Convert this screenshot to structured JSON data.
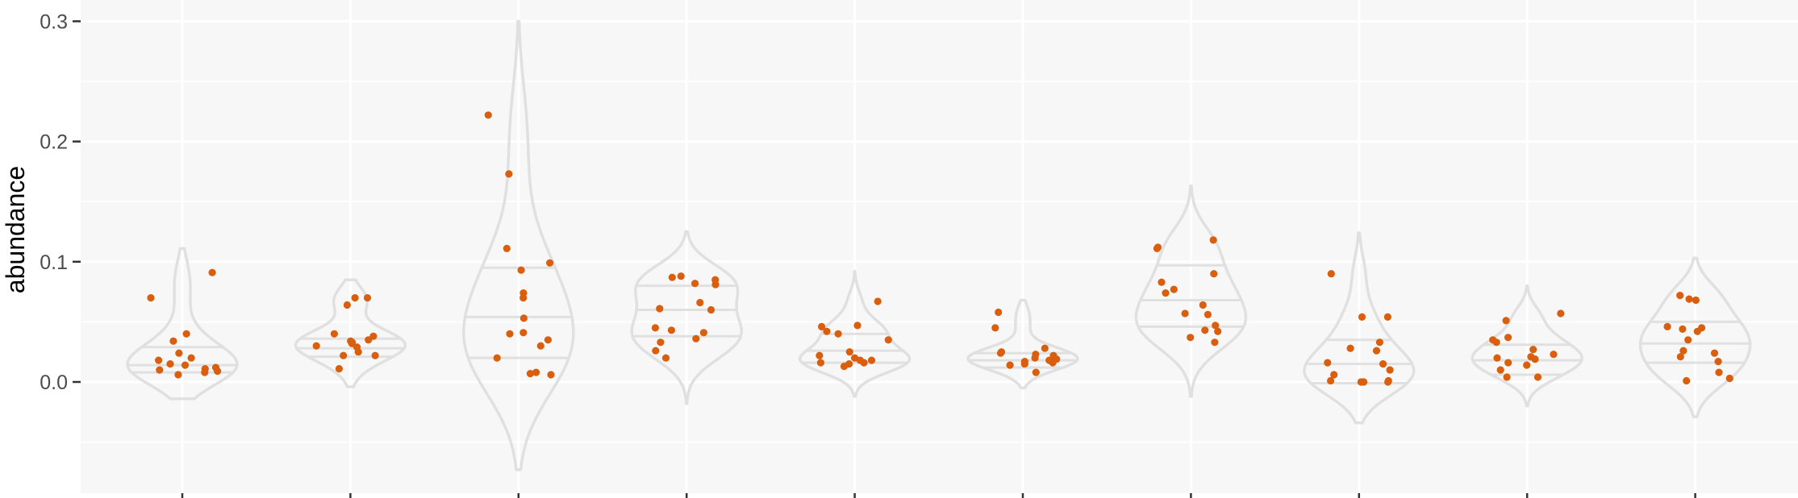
{
  "chart_data": {
    "type": "violin",
    "title": "",
    "xlabel": "",
    "ylabel": "abundance",
    "ylim": [
      -0.09,
      0.31
    ],
    "yticks": [
      0.0,
      0.1,
      0.2,
      0.3
    ],
    "ytick_labels": [
      "0.0",
      "0.1",
      "0.2",
      "0.3"
    ],
    "grid": true,
    "colors": {
      "panel_bg": "#f7f7f7",
      "grid": "#ffffff",
      "violin_stroke": "#e0e0e0",
      "point": "#d95f0e",
      "tick_label": "#4d4d4d",
      "tick": "#333333"
    },
    "groups": [
      {
        "range": [
          -0.014,
          0.111
        ],
        "quartiles": [
          0.008,
          0.014,
          0.029
        ],
        "values": [
          0.091,
          0.07,
          0.04,
          0.034,
          0.024,
          0.02,
          0.018,
          0.015,
          0.014,
          0.012,
          0.011,
          0.01,
          0.009,
          0.008,
          0.006
        ]
      },
      {
        "range": [
          -0.004,
          0.085
        ],
        "quartiles": [
          0.021,
          0.028,
          0.036
        ],
        "values": [
          0.07,
          0.07,
          0.064,
          0.04,
          0.038,
          0.035,
          0.034,
          0.033,
          0.032,
          0.03,
          0.029,
          0.025,
          0.022,
          0.022,
          0.011
        ]
      },
      {
        "range": [
          -0.073,
          0.3
        ],
        "quartiles": [
          0.02,
          0.054,
          0.095
        ],
        "values": [
          0.222,
          0.173,
          0.111,
          0.099,
          0.093,
          0.074,
          0.07,
          0.053,
          0.041,
          0.04,
          0.035,
          0.03,
          0.02,
          0.008,
          0.007,
          0.006
        ]
      },
      {
        "range": [
          -0.018,
          0.125
        ],
        "quartiles": [
          0.038,
          0.06,
          0.08
        ],
        "values": [
          0.088,
          0.087,
          0.085,
          0.082,
          0.081,
          0.066,
          0.061,
          0.06,
          0.045,
          0.043,
          0.041,
          0.036,
          0.033,
          0.026,
          0.02
        ]
      },
      {
        "range": [
          -0.012,
          0.092
        ],
        "quartiles": [
          0.016,
          0.026,
          0.04
        ],
        "values": [
          0.067,
          0.047,
          0.046,
          0.042,
          0.04,
          0.035,
          0.025,
          0.022,
          0.02,
          0.018,
          0.018,
          0.016,
          0.016,
          0.015,
          0.013
        ]
      },
      {
        "range": [
          -0.005,
          0.068
        ],
        "quartiles": [
          0.012,
          0.018,
          0.024
        ],
        "values": [
          0.058,
          0.045,
          0.028,
          0.025,
          0.024,
          0.023,
          0.022,
          0.02,
          0.019,
          0.018,
          0.017,
          0.016,
          0.015,
          0.014,
          0.008
        ]
      },
      {
        "range": [
          -0.012,
          0.163
        ],
        "quartiles": [
          0.046,
          0.068,
          0.097
        ],
        "values": [
          0.118,
          0.112,
          0.111,
          0.09,
          0.083,
          0.077,
          0.074,
          0.064,
          0.057,
          0.056,
          0.047,
          0.043,
          0.042,
          0.037,
          0.033
        ]
      },
      {
        "range": [
          -0.034,
          0.124
        ],
        "quartiles": [
          -0.001,
          0.015,
          0.035
        ],
        "values": [
          0.09,
          0.054,
          0.054,
          0.033,
          0.028,
          0.026,
          0.016,
          0.015,
          0.01,
          0.006,
          0.001,
          0.001,
          0.0,
          0.0,
          0.0
        ]
      },
      {
        "range": [
          -0.02,
          0.08
        ],
        "quartiles": [
          0.006,
          0.018,
          0.031
        ],
        "values": [
          0.057,
          0.051,
          0.037,
          0.035,
          0.033,
          0.027,
          0.023,
          0.021,
          0.02,
          0.019,
          0.016,
          0.014,
          0.01,
          0.004,
          0.004
        ]
      },
      {
        "range": [
          -0.029,
          0.103
        ],
        "quartiles": [
          0.016,
          0.032,
          0.05
        ],
        "values": [
          0.072,
          0.069,
          0.068,
          0.046,
          0.045,
          0.044,
          0.042,
          0.035,
          0.026,
          0.024,
          0.021,
          0.017,
          0.008,
          0.003,
          0.001
        ]
      }
    ]
  }
}
